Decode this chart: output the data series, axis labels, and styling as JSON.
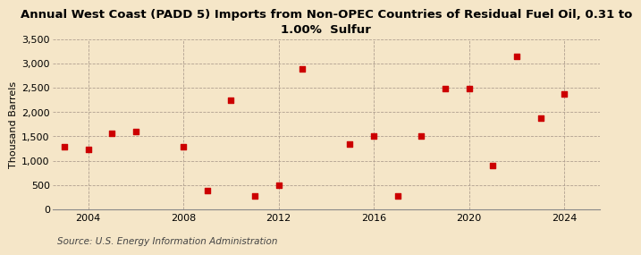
{
  "title": "Annual West Coast (PADD 5) Imports from Non-OPEC Countries of Residual Fuel Oil, 0.31 to\n1.00%  Sulfur",
  "ylabel": "Thousand Barrels",
  "source": "Source: U.S. Energy Information Administration",
  "background_color": "#f5e6c8",
  "marker_color": "#cc0000",
  "years": [
    2003,
    2004,
    2005,
    2006,
    2008,
    2009,
    2010,
    2011,
    2012,
    2013,
    2015,
    2016,
    2017,
    2018,
    2019,
    2020,
    2021,
    2022,
    2023,
    2024
  ],
  "values": [
    1280,
    1240,
    1560,
    1600,
    1290,
    380,
    2240,
    280,
    500,
    2880,
    1340,
    1510,
    270,
    1500,
    2490,
    2490,
    900,
    3150,
    1870,
    2380
  ],
  "ylim": [
    0,
    3500
  ],
  "yticks": [
    0,
    500,
    1000,
    1500,
    2000,
    2500,
    3000,
    3500
  ],
  "xlim": [
    2002.5,
    2025.5
  ],
  "xticks": [
    2004,
    2008,
    2012,
    2016,
    2020,
    2024
  ],
  "grid_color": "#b0a090",
  "title_fontsize": 9.5,
  "label_fontsize": 8,
  "tick_fontsize": 8,
  "source_fontsize": 7.5
}
